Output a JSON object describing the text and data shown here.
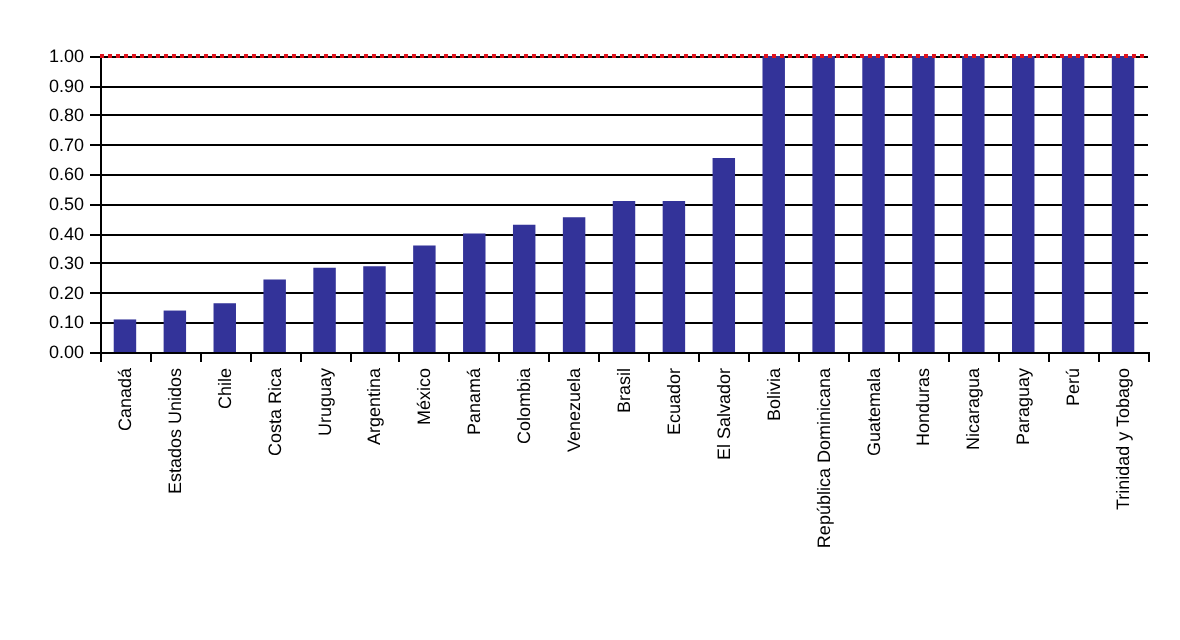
{
  "chart_data": {
    "type": "bar",
    "categories": [
      "Canadá",
      "Estados Unidos",
      "Chile",
      "Costa Rica",
      "Uruguay",
      "Argentina",
      "México",
      "Panamá",
      "Colombia",
      "Venezuela",
      "Brasil",
      "Ecuador",
      "El Salvador",
      "Bolivia",
      "República Dominicana",
      "Guatemala",
      "Honduras",
      "Nicaragua",
      "Paraguay",
      "Perú",
      "Trinidad y Tobago"
    ],
    "values": [
      0.11,
      0.14,
      0.165,
      0.245,
      0.285,
      0.29,
      0.36,
      0.4,
      0.43,
      0.455,
      0.51,
      0.51,
      0.655,
      1,
      1,
      1,
      1,
      1,
      1,
      1,
      1
    ],
    "color": "#333399",
    "ylim": [
      0,
      1
    ],
    "yticks": [
      {
        "value": 0,
        "label": "0.00"
      },
      {
        "value": 0.1,
        "label": "0.10"
      },
      {
        "value": 0.2,
        "label": "0.20"
      },
      {
        "value": 0.3,
        "label": "0.30"
      },
      {
        "value": 0.4,
        "label": "0.40"
      },
      {
        "value": 0.5,
        "label": "0.50"
      },
      {
        "value": 0.6,
        "label": "0.60"
      },
      {
        "value": 0.7,
        "label": "0.70"
      },
      {
        "value": 0.8,
        "label": "0.80"
      },
      {
        "value": 0.9,
        "label": "0.90"
      },
      {
        "value": 1,
        "label": "1.00"
      }
    ],
    "grid": "y",
    "ref_lines": [
      {
        "axis": "y",
        "value": 1,
        "color": "#e0141e",
        "line_style": "dotted"
      }
    ]
  }
}
